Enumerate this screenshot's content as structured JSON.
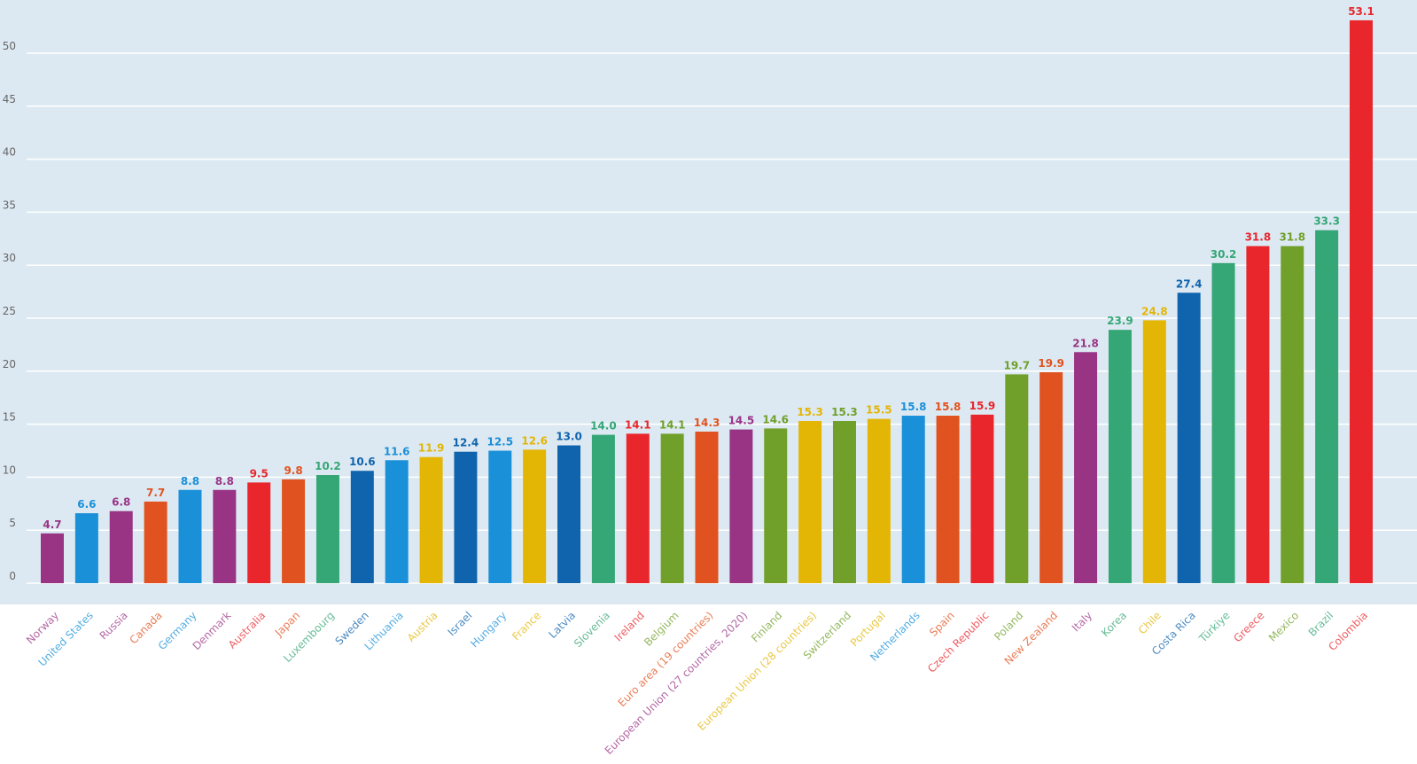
{
  "chart_data": {
    "type": "bar",
    "title": "",
    "xlabel": "",
    "ylabel": "",
    "ylim": [
      0,
      53.1
    ],
    "yticks": [
      0,
      5,
      10,
      15,
      20,
      25,
      30,
      35,
      40,
      45,
      50
    ],
    "grid": true,
    "colors": {
      "purple": "#993485",
      "blue": "#1a90d8",
      "orange": "#e0521f",
      "red": "#e8262c",
      "green": "#35a676",
      "darkblue": "#0f64ad",
      "yellow": "#e3b505",
      "olive": "#70a02a"
    },
    "categories": [
      "Norway",
      "United States",
      "Russia",
      "Canada",
      "Germany",
      "Denmark",
      "Australia",
      "Japan",
      "Luxembourg",
      "Sweden",
      "Lithuania",
      "Austria",
      "Israel",
      "Hungary",
      "France",
      "Latvia",
      "Slovenia",
      "Ireland",
      "Belgium",
      "Euro area (19 countries)",
      "European Union (27 countries, 2020)",
      "Finland",
      "European Union (28 countries)",
      "Switzerland",
      "Portugal",
      "Netherlands",
      "Spain",
      "Czech Republic",
      "Poland",
      "New Zealand",
      "Italy",
      "Korea",
      "Chile",
      "Costa Rica",
      "Türkiye",
      "Greece",
      "Mexico",
      "Brazil",
      "Colombia"
    ],
    "values": [
      4.7,
      6.6,
      6.8,
      7.7,
      8.8,
      8.8,
      9.5,
      9.8,
      10.2,
      10.6,
      11.6,
      11.9,
      12.4,
      12.5,
      12.6,
      13.0,
      14.0,
      14.1,
      14.1,
      14.3,
      14.5,
      14.6,
      15.3,
      15.3,
      15.5,
      15.8,
      15.8,
      15.9,
      19.7,
      19.9,
      21.8,
      23.9,
      24.8,
      27.4,
      30.2,
      31.8,
      31.8,
      33.3,
      53.1
    ],
    "bar_colors": [
      "purple",
      "blue",
      "purple",
      "orange",
      "blue",
      "purple",
      "red",
      "orange",
      "green",
      "darkblue",
      "blue",
      "yellow",
      "darkblue",
      "blue",
      "yellow",
      "darkblue",
      "green",
      "red",
      "olive",
      "orange",
      "purple",
      "olive",
      "yellow",
      "olive",
      "yellow",
      "blue",
      "orange",
      "red",
      "olive",
      "orange",
      "purple",
      "green",
      "yellow",
      "darkblue",
      "green",
      "red",
      "olive",
      "green",
      "red"
    ]
  }
}
